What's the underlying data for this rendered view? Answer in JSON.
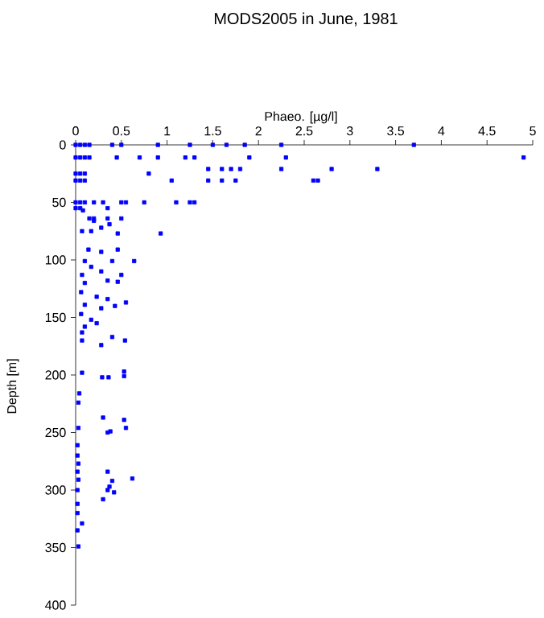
{
  "chart_data": {
    "type": "scatter",
    "title": "MODS2005 in June, 1981",
    "xlabel": "Phaeo. [µg/l]",
    "ylabel": "Depth [m]",
    "xlim": [
      0,
      5
    ],
    "xticks": [
      0,
      0.5,
      1,
      1.5,
      2,
      2.5,
      3,
      3.5,
      4,
      4.5,
      5
    ],
    "ylim": [
      400,
      0
    ],
    "yticks": [
      0,
      50,
      100,
      150,
      200,
      250,
      300,
      350,
      400
    ],
    "marker": "square",
    "series": [
      {
        "color": "#0000ff",
        "x": [
          0,
          0.05,
          0.1,
          0.15,
          0.4,
          0.5,
          0.9,
          1.25,
          1.5,
          1.65,
          1.85,
          2.25,
          3.7,
          0,
          0.05,
          0.1,
          0.15,
          0.45,
          0.7,
          0.9,
          1.2,
          1.3,
          1.9,
          2.3,
          4.9,
          1.45,
          1.6,
          1.7,
          1.8,
          2.25,
          2.8,
          3.3,
          0,
          0.05,
          0.1,
          0.8,
          0,
          0.05,
          0.1,
          1.05,
          1.45,
          1.6,
          1.75,
          2.6,
          2.65,
          0,
          0.05,
          0.1,
          0.2,
          0.3,
          0.5,
          0.55,
          0.75,
          1.1,
          1.25,
          1.3,
          0,
          0.05,
          0.35,
          0.15,
          0.2,
          0.35,
          0.5,
          0.08,
          0.2,
          0.07,
          0.17,
          0.28,
          0.37,
          0.46,
          0.93,
          0.14,
          0.28,
          0.46,
          0.64,
          0.1,
          0.4,
          0.17,
          0.28,
          0.07,
          0.5,
          0.35,
          0.1,
          0.46,
          0.06,
          0.23,
          0.35,
          0.55,
          0.43,
          0.1,
          0.28,
          0.06,
          0.17,
          0.1,
          0.23,
          0.07,
          0.4,
          0.54,
          0.28,
          0.07,
          0.07,
          0.29,
          0.36,
          0.53,
          0.53,
          0.04,
          0.03,
          0.3,
          0.53,
          0.55,
          0.38,
          0.35,
          0.03,
          0.02,
          0.02,
          0.03,
          0.02,
          0.03,
          0.35,
          0.62,
          0.4,
          0.37,
          0.35,
          0.42,
          0.3,
          0.02,
          0.02,
          0.02,
          0.07,
          0.02,
          0.03
        ],
        "values": [
          0,
          0,
          0,
          0,
          0,
          0,
          0,
          0,
          0,
          0,
          0,
          0,
          0,
          11,
          11,
          11,
          11,
          11,
          11,
          11,
          11,
          11,
          11,
          11,
          11,
          21,
          21,
          21,
          21,
          21,
          21,
          21,
          25,
          25,
          25,
          25,
          31,
          31,
          31,
          31,
          31,
          31,
          31,
          31,
          31,
          50,
          50,
          50,
          50,
          50,
          50,
          50,
          50,
          50,
          50,
          50,
          55,
          55,
          55,
          64,
          64,
          64,
          64,
          57,
          66,
          75,
          75,
          72,
          69,
          77,
          77,
          91,
          93,
          91,
          101,
          101,
          101,
          106,
          110,
          113,
          113,
          118,
          120,
          119,
          128,
          132,
          134,
          137,
          140,
          139,
          142,
          147,
          152,
          158,
          155,
          163,
          167,
          170,
          174,
          170,
          198,
          202,
          202,
          201,
          197,
          216,
          224,
          237,
          239,
          246,
          249,
          250,
          246,
          261,
          270,
          277,
          284,
          291,
          284,
          290,
          292,
          297,
          300,
          302,
          308,
          300,
          312,
          320,
          329,
          335,
          349
        ]
      }
    ]
  }
}
